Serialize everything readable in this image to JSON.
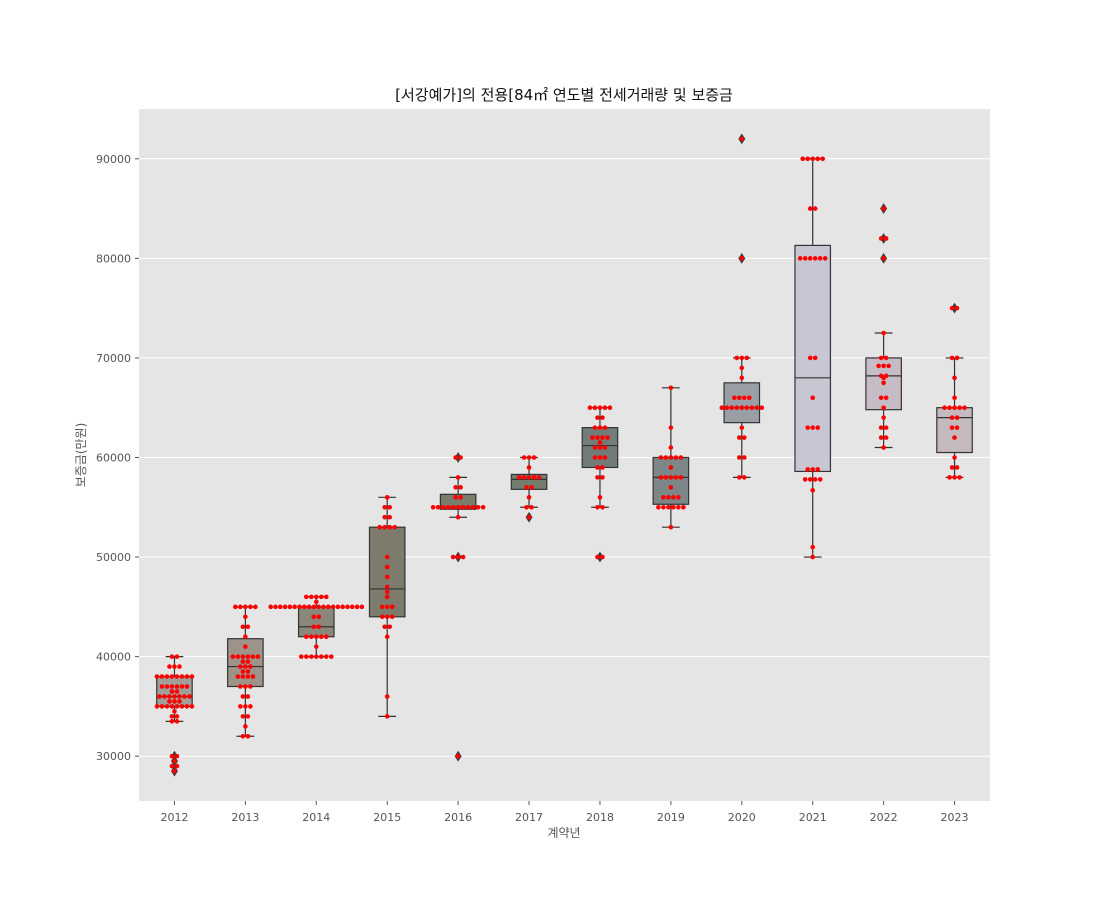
{
  "chart_data": {
    "type": "box",
    "title": "[서강예가]의 전용[84㎡ 연도별 전세거래량 및 보증금",
    "xlabel": "계약년",
    "ylabel": "보증금(만원)",
    "ylim": [
      25500,
      95000
    ],
    "yticks": [
      30000,
      40000,
      50000,
      60000,
      70000,
      80000,
      90000
    ],
    "grid": true,
    "overlay": "swarm points in red",
    "categories": [
      "2012",
      "2013",
      "2014",
      "2015",
      "2016",
      "2017",
      "2018",
      "2019",
      "2020",
      "2021",
      "2022",
      "2023"
    ],
    "boxes": [
      {
        "year": "2012",
        "q1": 35000,
        "median": 36000,
        "q3": 38000,
        "whisker_low": 33500,
        "whisker_high": 40000,
        "outliers": [
          30000,
          29500,
          29000,
          28500
        ],
        "color": "#a39e98",
        "points": [
          40000,
          40000,
          39000,
          39000,
          39000,
          38000,
          38000,
          38000,
          38000,
          38000,
          38000,
          38000,
          38000,
          37000,
          37000,
          37000,
          37000,
          37000,
          37000,
          36500,
          36500,
          36000,
          36000,
          36000,
          36000,
          36000,
          36000,
          36000,
          35500,
          35500,
          35500,
          35000,
          35000,
          35000,
          35000,
          35000,
          35000,
          35000,
          35000,
          34500,
          34000,
          34000,
          33500,
          33500,
          30000,
          30000,
          29500,
          29000,
          29000,
          28500
        ]
      },
      {
        "year": "2013",
        "q1": 37000,
        "median": 39000,
        "q3": 41800,
        "whisker_low": 32000,
        "whisker_high": 45000,
        "outliers": [],
        "color": "#9d9389",
        "points": [
          45000,
          45000,
          45000,
          45000,
          45000,
          44000,
          43000,
          43000,
          42000,
          41000,
          40000,
          40000,
          40000,
          40000,
          40000,
          40000,
          39500,
          39500,
          39000,
          39000,
          39000,
          38500,
          38500,
          38000,
          38000,
          38000,
          38000,
          37000,
          37000,
          37000,
          36000,
          36000,
          35000,
          35000,
          35000,
          34000,
          34000,
          33000,
          32000,
          32000
        ]
      },
      {
        "year": "2014",
        "q1": 42000,
        "median": 43000,
        "q3": 45000,
        "whisker_low": 40000,
        "whisker_high": 46000,
        "outliers": [],
        "color": "#8c877b",
        "points": [
          46000,
          46000,
          46000,
          46000,
          46000,
          45500,
          45000,
          45000,
          45000,
          45000,
          45000,
          45000,
          45000,
          45000,
          45000,
          45000,
          45000,
          45000,
          45000,
          45000,
          45000,
          45000,
          45000,
          45000,
          45000,
          45000,
          44000,
          44000,
          43000,
          43000,
          42000,
          42000,
          42000,
          42000,
          42000,
          41000,
          40000,
          40000,
          40000,
          40000,
          40000,
          40000,
          40000
        ]
      },
      {
        "year": "2015",
        "q1": 44000,
        "median": 46800,
        "q3": 53000,
        "whisker_low": 34000,
        "whisker_high": 56000,
        "outliers": [],
        "color": "#7d7b6b",
        "points": [
          56000,
          55000,
          55000,
          54000,
          54000,
          53000,
          53000,
          53000,
          53000,
          50000,
          49000,
          48000,
          47000,
          46500,
          46000,
          45000,
          45000,
          45000,
          44000,
          44000,
          44000,
          43000,
          43000,
          42000,
          36000,
          34000
        ]
      },
      {
        "year": "2016",
        "q1": 54800,
        "median": 55000,
        "q3": 56300,
        "whisker_low": 54000,
        "whisker_high": 58000,
        "outliers": [
          60000,
          50000,
          30000
        ],
        "color": "#797d6b",
        "points": [
          60000,
          60000,
          58000,
          57000,
          57000,
          56000,
          56000,
          55000,
          55000,
          55000,
          55000,
          55000,
          55000,
          55000,
          55000,
          55000,
          55000,
          55000,
          54000,
          50000,
          50000,
          50000,
          30000
        ]
      },
      {
        "year": "2017",
        "q1": 56800,
        "median": 57800,
        "q3": 58300,
        "whisker_low": 55000,
        "whisker_high": 60000,
        "outliers": [
          54000
        ],
        "color": "#757d6f",
        "points": [
          60000,
          60000,
          60000,
          59000,
          58000,
          58000,
          58000,
          58000,
          58000,
          57000,
          57000,
          56000,
          55000,
          55000,
          54000
        ]
      },
      {
        "year": "2018",
        "q1": 59000,
        "median": 61200,
        "q3": 63000,
        "whisker_low": 55000,
        "whisker_high": 65000,
        "outliers": [
          50000
        ],
        "color": "#737d78",
        "points": [
          65000,
          65000,
          65000,
          65000,
          65000,
          64000,
          64000,
          63000,
          63000,
          63000,
          62000,
          62000,
          62000,
          62000,
          61500,
          61000,
          61000,
          61000,
          60000,
          60000,
          60000,
          59000,
          59000,
          58000,
          58000,
          56000,
          55000,
          55000,
          50000,
          50000
        ]
      },
      {
        "year": "2019",
        "q1": 55300,
        "median": 58000,
        "q3": 60000,
        "whisker_low": 53000,
        "whisker_high": 67000,
        "outliers": [],
        "color": "#7d8787",
        "points": [
          67000,
          63000,
          61000,
          60000,
          60000,
          60000,
          60000,
          60000,
          59000,
          58000,
          58000,
          58000,
          58000,
          58000,
          57000,
          56000,
          56000,
          56000,
          56000,
          55000,
          55000,
          55000,
          55000,
          55000,
          55000,
          53000
        ]
      },
      {
        "year": "2020",
        "q1": 63500,
        "median": 65000,
        "q3": 67500,
        "whisker_low": 58000,
        "whisker_high": 70000,
        "outliers": [
          92000,
          80000
        ],
        "color": "#9a9ea5",
        "points": [
          92000,
          80000,
          70000,
          70000,
          70000,
          69000,
          68000,
          66000,
          66000,
          66000,
          66000,
          65000,
          65000,
          65000,
          65000,
          65000,
          65000,
          65000,
          65000,
          65000,
          63000,
          62000,
          62000,
          60000,
          60000,
          58000,
          58000
        ]
      },
      {
        "year": "2021",
        "q1": 58600,
        "median": 68000,
        "q3": 81300,
        "whisker_low": 50000,
        "whisker_high": 90000,
        "outliers": [],
        "color": "#c7c6d2",
        "points": [
          90000,
          90000,
          90000,
          90000,
          90000,
          85000,
          85000,
          80000,
          80000,
          80000,
          80000,
          80000,
          80000,
          70000,
          70000,
          66000,
          63000,
          63000,
          63000,
          58800,
          58800,
          58800,
          57800,
          57800,
          57800,
          57800,
          56700,
          51000,
          50000
        ]
      },
      {
        "year": "2022",
        "q1": 64800,
        "median": 68200,
        "q3": 70000,
        "whisker_low": 61000,
        "whisker_high": 72500,
        "outliers": [
          85000,
          82000,
          80000
        ],
        "color": "#c5bcc6",
        "points": [
          85000,
          82000,
          82000,
          80000,
          72500,
          70000,
          70000,
          69200,
          69200,
          69200,
          68200,
          68200,
          68000,
          67500,
          66000,
          66000,
          65000,
          64000,
          63000,
          63000,
          62000,
          62000,
          61000
        ]
      },
      {
        "year": "2023",
        "q1": 60500,
        "median": 64000,
        "q3": 65000,
        "whisker_low": 58000,
        "whisker_high": 70000,
        "outliers": [
          75000
        ],
        "color": "#c4b9bc",
        "points": [
          75000,
          75000,
          70000,
          70000,
          68000,
          66000,
          65000,
          65000,
          65000,
          65000,
          65000,
          64000,
          64000,
          63000,
          63000,
          62000,
          60000,
          59000,
          59000,
          58000,
          58000,
          58000
        ]
      }
    ]
  },
  "colors": {
    "axes_bg": "#e5e5e5",
    "grid": "#ffffff",
    "point": "#ff0000",
    "outlier": "#3f3f3f",
    "line": "#333333"
  }
}
